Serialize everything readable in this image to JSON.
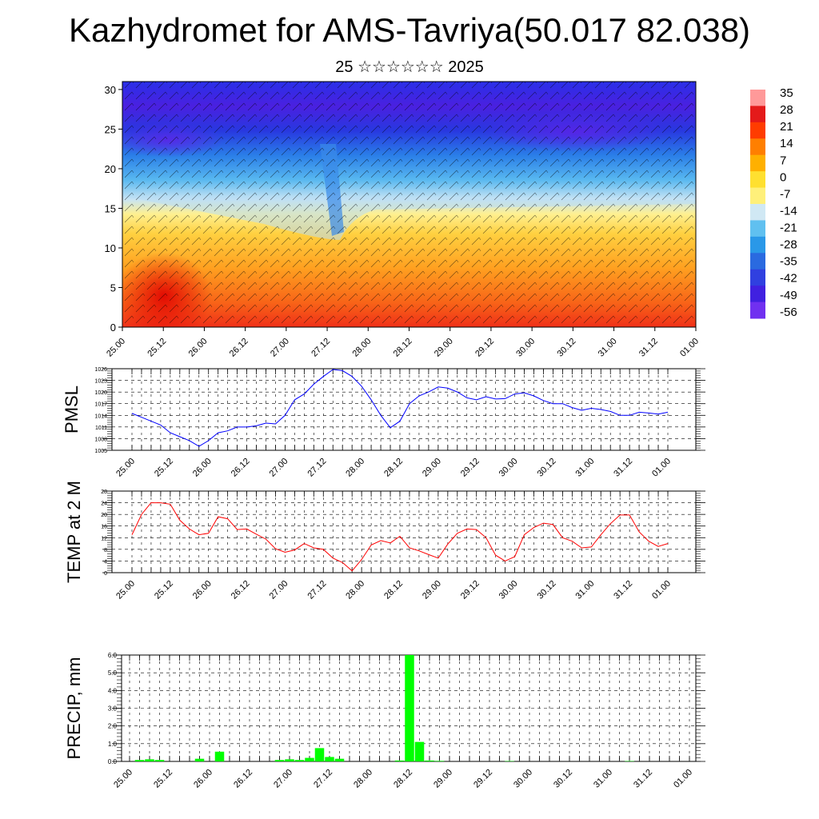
{
  "title": "Kazhydromet for AMS-Tavriya(50.017 82.038)",
  "subtitle": "25 ☆☆☆☆☆☆ 2025",
  "time_labels": [
    "25.00",
    "25.12",
    "26.00",
    "26.12",
    "27.00",
    "27.12",
    "28.00",
    "28.12",
    "29.00",
    "29.12",
    "30.00",
    "30.12",
    "31.00",
    "31.12",
    "01.00"
  ],
  "chart_data": [
    {
      "type": "heatmap",
      "title": "",
      "xlabel": "",
      "ylabel": "",
      "x_categories": [
        "25.00",
        "25.12",
        "26.00",
        "26.12",
        "27.00",
        "27.12",
        "28.00",
        "28.12",
        "29.00",
        "29.12",
        "30.00",
        "30.12",
        "31.00",
        "31.12",
        "01.00"
      ],
      "y_ticks": [
        0,
        5,
        10,
        15,
        20,
        25,
        30
      ],
      "ylim": [
        0,
        31
      ],
      "colorbar": {
        "labels": [
          "35",
          "28",
          "21",
          "14",
          "7",
          "0",
          "-7",
          "-14",
          "-21",
          "-28",
          "-35",
          "-42",
          "-49",
          "-56"
        ],
        "colors": [
          "#ff9999",
          "#e41a1a",
          "#ff3c00",
          "#ff7f00",
          "#ffb000",
          "#ffe030",
          "#fff07a",
          "#d0e8f4",
          "#60c0f0",
          "#2a98e8",
          "#2a6ae0",
          "#3040e0",
          "#4020e0",
          "#7030f0"
        ]
      },
      "profile_description_levels": [
        {
          "height_km": 2,
          "temp_c": 21
        },
        {
          "height_km": 10,
          "temp_c": 0
        },
        {
          "height_km": 14,
          "temp_c": -14
        },
        {
          "height_km": 20,
          "temp_c": -35
        },
        {
          "height_km": 24,
          "temp_c": -50
        },
        {
          "height_km": 29,
          "temp_c": -42
        }
      ]
    },
    {
      "type": "line",
      "ylabel": "PMSL",
      "xlabel": "",
      "y_ticks": [
        1005,
        1008,
        1011,
        1014,
        1017,
        1020,
        1023,
        1026
      ],
      "ylim": [
        1005,
        1026
      ],
      "x": [
        "25.00",
        "25.03",
        "25.06",
        "25.09",
        "25.12",
        "25.15",
        "25.18",
        "25.21",
        "26.00",
        "26.03",
        "26.06",
        "26.09",
        "26.12",
        "26.15",
        "26.18",
        "26.21",
        "27.00",
        "27.03",
        "27.06",
        "27.09",
        "27.12",
        "27.15",
        "27.18",
        "27.21",
        "28.00",
        "28.03",
        "28.06",
        "28.09",
        "28.12",
        "28.15",
        "28.18",
        "28.21",
        "29.00",
        "29.03",
        "29.06",
        "29.09",
        "29.12",
        "29.15",
        "29.18",
        "29.21",
        "30.00",
        "30.03",
        "30.06",
        "30.09",
        "30.12",
        "30.15",
        "30.18",
        "30.21",
        "31.00",
        "31.03",
        "31.06",
        "31.09",
        "31.12",
        "31.15",
        "31.18",
        "31.21",
        "01.00"
      ],
      "series": [
        {
          "name": "",
          "color": "#0000ff",
          "values": [
            1014.5,
            1013.5,
            1012.5,
            1011.5,
            1009.5,
            1008.5,
            1007.5,
            1006.0,
            1007.5,
            1009.5,
            1010.0,
            1011.0,
            1011.0,
            1011.3,
            1012.0,
            1011.8,
            1014.0,
            1018.0,
            1019.5,
            1022.0,
            1024.0,
            1025.8,
            1025.5,
            1024.0,
            1021.5,
            1018.0,
            1014.0,
            1010.8,
            1012.5,
            1017.0,
            1019.0,
            1020.0,
            1021.3,
            1021.0,
            1020.0,
            1018.5,
            1018.0,
            1018.8,
            1018.2,
            1018.3,
            1019.5,
            1019.8,
            1019.0,
            1017.8,
            1017.0,
            1017.0,
            1016.0,
            1015.3,
            1015.8,
            1015.5,
            1015.0,
            1014.0,
            1014.0,
            1014.8,
            1014.6,
            1014.3,
            1014.8
          ]
        }
      ]
    },
    {
      "type": "line",
      "ylabel": "TEMP at 2 M",
      "xlabel": "",
      "y_ticks": [
        0,
        4,
        8,
        12,
        16,
        20,
        24,
        28
      ],
      "ylim": [
        0,
        28
      ],
      "x": [
        "25.00",
        "25.03",
        "25.06",
        "25.09",
        "25.12",
        "25.15",
        "25.18",
        "25.21",
        "26.00",
        "26.03",
        "26.06",
        "26.09",
        "26.12",
        "26.15",
        "26.18",
        "26.21",
        "27.00",
        "27.03",
        "27.06",
        "27.09",
        "27.12",
        "27.15",
        "27.18",
        "27.21",
        "28.00",
        "28.03",
        "28.06",
        "28.09",
        "28.12",
        "28.15",
        "28.18",
        "28.21",
        "29.00",
        "29.03",
        "29.06",
        "29.09",
        "29.12",
        "29.15",
        "29.18",
        "29.21",
        "30.00",
        "30.03",
        "30.06",
        "30.09",
        "30.12",
        "30.15",
        "30.18",
        "30.21",
        "31.00",
        "31.03",
        "31.06",
        "31.09",
        "31.12",
        "31.15",
        "31.18",
        "31.21",
        "01.00"
      ],
      "series": [
        {
          "name": "",
          "color": "#ff0000",
          "values": [
            13,
            20,
            24,
            24,
            23.5,
            18,
            15,
            13,
            13.5,
            19.2,
            18.5,
            14.8,
            15,
            13.2,
            11.5,
            8.2,
            7,
            7.8,
            10,
            8.5,
            8,
            5,
            3.5,
            0.6,
            4.5,
            9.5,
            11,
            10.2,
            12.5,
            8.5,
            7.5,
            6.2,
            5,
            9.8,
            13.5,
            15,
            14.8,
            12,
            6,
            4,
            5.5,
            13,
            15.5,
            17,
            16.5,
            12,
            10.8,
            8.5,
            8.8,
            13,
            16.8,
            19.8,
            19.8,
            14,
            10.8,
            9,
            10
          ]
        }
      ]
    },
    {
      "type": "bar",
      "ylabel": "PRECIP, mm",
      "xlabel": "",
      "y_ticks": [
        "0.0",
        "1.0",
        "2.0",
        "3.0",
        "4.0",
        "5.0",
        "6.0"
      ],
      "ylim": [
        0,
        6
      ],
      "categories": [
        "25.00",
        "25.03",
        "25.06",
        "25.09",
        "25.12",
        "25.15",
        "25.18",
        "25.21",
        "26.00",
        "26.03",
        "26.06",
        "26.09",
        "26.12",
        "26.15",
        "26.18",
        "26.21",
        "27.00",
        "27.03",
        "27.06",
        "27.09",
        "27.12",
        "27.15",
        "27.18",
        "27.21",
        "28.00",
        "28.03",
        "28.06",
        "28.09",
        "28.12",
        "28.15",
        "28.18",
        "28.21",
        "29.00",
        "29.03",
        "29.06",
        "29.09",
        "29.12",
        "29.15",
        "29.18",
        "29.21",
        "30.00",
        "30.03",
        "30.06",
        "30.09",
        "30.12",
        "30.15",
        "30.18",
        "30.21",
        "31.00",
        "31.03",
        "31.06",
        "31.09",
        "31.12",
        "31.15",
        "31.18",
        "31.21",
        "01.00"
      ],
      "series": [
        {
          "name": "",
          "color": "#00ff00",
          "values": [
            0,
            0.08,
            0.12,
            0.08,
            0,
            0,
            0,
            0.15,
            0,
            0.55,
            0,
            0,
            0,
            0,
            0,
            0.08,
            0.12,
            0.08,
            0.2,
            0.75,
            0.25,
            0.15,
            0,
            0,
            0,
            0,
            0,
            0.05,
            6.0,
            1.1,
            0.05,
            0.03,
            0,
            0,
            0,
            0,
            0,
            0,
            0.02,
            0,
            0,
            0,
            0,
            0,
            0,
            0,
            0,
            0,
            0,
            0,
            0.02,
            0,
            0,
            0,
            0,
            0,
            0
          ]
        }
      ]
    }
  ]
}
